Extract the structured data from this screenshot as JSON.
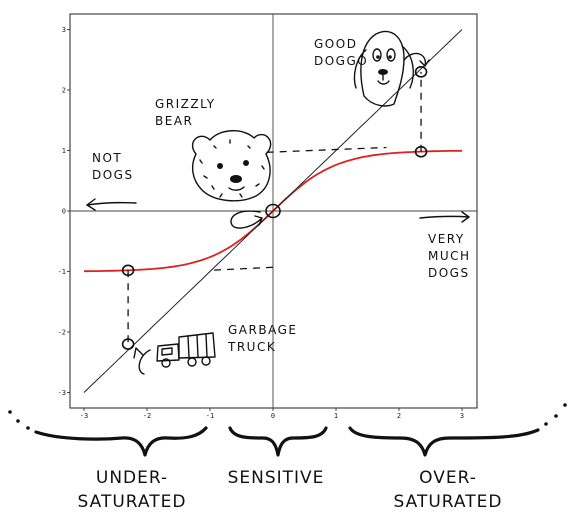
{
  "chart_data": {
    "type": "line",
    "title": "",
    "xlabel": "",
    "ylabel": "",
    "xlim": [
      -3.2,
      3.3
    ],
    "ylim": [
      -3.2,
      3.2
    ],
    "xticks": [
      -3,
      -2,
      -1,
      0,
      1,
      2,
      3
    ],
    "yticks": [
      -3,
      -2,
      -1,
      0,
      1,
      2,
      3
    ],
    "grid": false,
    "series": [
      {
        "name": "",
        "color": "#dd2222",
        "function": "tanh",
        "x_range": [
          -3,
          3
        ],
        "x": [
          -3,
          -2.5,
          -2,
          -1.5,
          -1,
          -0.5,
          0,
          0.5,
          1,
          1.5,
          2,
          2.5,
          3
        ],
        "y": [
          -0.995,
          -0.987,
          -0.964,
          -0.905,
          -0.762,
          -0.462,
          0,
          0.462,
          0.762,
          0.905,
          0.964,
          0.987,
          0.995
        ]
      },
      {
        "name": "",
        "color": "#222222",
        "function": "identity",
        "x_range": [
          -3,
          3
        ],
        "x": [
          -3,
          3
        ],
        "y": [
          -3,
          3
        ]
      }
    ],
    "points": [
      {
        "x": -2.3,
        "y": -0.98
      },
      {
        "x": -2.3,
        "y": -2.2
      },
      {
        "x": 0,
        "y": 0
      },
      {
        "x": 2.35,
        "y": 0.98
      },
      {
        "x": 2.35,
        "y": 2.3
      }
    ],
    "annotations": [
      {
        "id": "good-doggo",
        "text": "GOOD\nDOGGO"
      },
      {
        "id": "grizzly-bear",
        "text": "GRIZZLY\nBEAR"
      },
      {
        "id": "not-dogs",
        "text": "NOT\nDOGS"
      },
      {
        "id": "very-much-dogs",
        "text": "VERY\nMUCH\nDOGS"
      },
      {
        "id": "garbage-truck",
        "text": "GARBAGE\nTRUCK"
      }
    ],
    "bottom_labels": [
      {
        "id": "under-saturated",
        "text": "UNDER-\nSATURATED"
      },
      {
        "id": "sensitive",
        "text": "SENSITIVE"
      },
      {
        "id": "over-saturated",
        "text": "OVER-\nSATURATED"
      }
    ]
  }
}
